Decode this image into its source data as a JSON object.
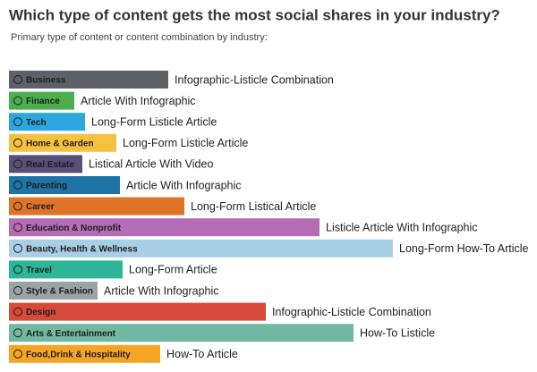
{
  "chart_data": {
    "type": "bar",
    "title": "Which type of content gets the most social shares in your industry?",
    "subtitle": "Primary type of content or content combination by industry:",
    "categories": [
      "Business",
      "Finance",
      "Tech",
      "Home & Garden",
      "Real Estate",
      "Parenting",
      "Career",
      "Education & Nonprofit",
      "Beauty, Health & Wellness",
      "Travel",
      "Style & Fashion",
      "Design",
      "Arts & Entertainment",
      "Food,Drink & Hospitality"
    ],
    "annotations": [
      "Infographic-Listicle Combination",
      "Article With Infographic",
      "Long-Form Listicle Article",
      "Long-Form Listicle Article",
      "Listical Article With Video",
      "Article With Infographic",
      "Long-Form Listical Article",
      "Listicle Article With Infographic",
      "Long-Form How-To Article",
      "Long-Form Article",
      "Article With Infographic",
      "Infographic-Listicle Combination",
      "How-To Listicle",
      "How-To Article"
    ],
    "values": [
      178,
      73,
      85,
      120,
      82,
      124,
      196,
      347,
      429,
      127,
      99,
      287,
      385,
      169
    ],
    "colors": [
      "#5b6167",
      "#4cae4f",
      "#2aa7df",
      "#f6c13f",
      "#5a4e78",
      "#1f73a6",
      "#e07426",
      "#b46cb4",
      "#a9cfe7",
      "#2cb597",
      "#9aa3a5",
      "#d74a39",
      "#70b8a1",
      "#f5a524"
    ]
  }
}
